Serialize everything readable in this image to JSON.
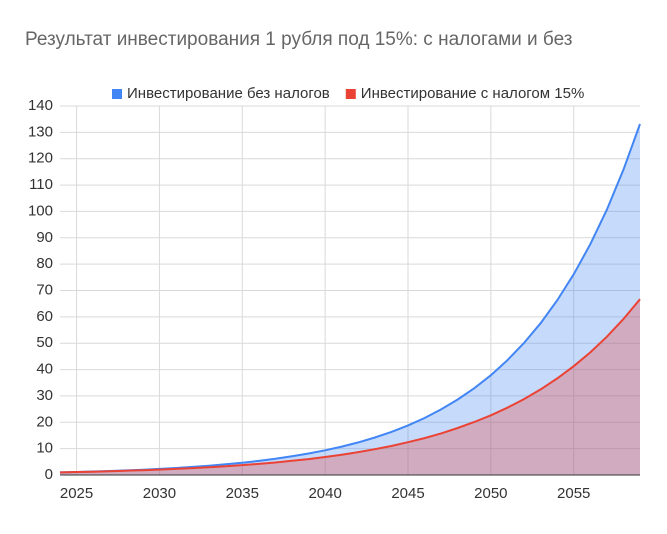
{
  "chart_data": {
    "type": "area",
    "title": "Результат инвестирования 1 рубля под 15%: с налогами и без",
    "x": [
      2024,
      2025,
      2026,
      2027,
      2028,
      2029,
      2030,
      2031,
      2032,
      2033,
      2034,
      2035,
      2036,
      2037,
      2038,
      2039,
      2040,
      2041,
      2042,
      2043,
      2044,
      2045,
      2046,
      2047,
      2048,
      2049,
      2050,
      2051,
      2052,
      2053,
      2054,
      2055,
      2056,
      2057,
      2058,
      2059
    ],
    "series": [
      {
        "name": "Инвестирование без налогов",
        "color": "#4285f4",
        "values": [
          1,
          1.15,
          1.32,
          1.52,
          1.75,
          2.01,
          2.31,
          2.66,
          3.06,
          3.52,
          4.05,
          4.65,
          5.35,
          6.15,
          7.08,
          8.14,
          9.36,
          10.76,
          12.38,
          14.23,
          16.37,
          18.82,
          21.64,
          24.89,
          28.63,
          32.92,
          37.86,
          43.54,
          50.07,
          57.58,
          66.21,
          76.14,
          87.57,
          100.7,
          115.8,
          133.18
        ]
      },
      {
        "name": "Инвестирование с налогом 15%",
        "color": "#ea4335",
        "values": [
          1,
          1.13,
          1.27,
          1.43,
          1.62,
          1.82,
          2.05,
          2.32,
          2.61,
          2.94,
          3.32,
          3.74,
          4.22,
          4.76,
          5.37,
          6.05,
          6.82,
          7.69,
          8.67,
          9.78,
          11.02,
          12.43,
          14.01,
          15.8,
          17.82,
          20.09,
          22.65,
          25.53,
          28.79,
          32.46,
          36.6,
          41.27,
          46.53,
          52.46,
          59.15,
          66.69
        ]
      }
    ],
    "xlim": [
      2024,
      2059
    ],
    "xticks": [
      2025,
      2030,
      2035,
      2040,
      2045,
      2050,
      2055
    ],
    "ylim": [
      0,
      140
    ],
    "yticks": [
      0,
      10,
      20,
      30,
      40,
      50,
      60,
      70,
      80,
      90,
      100,
      110,
      120,
      130,
      140
    ],
    "grid": true,
    "legend": "top"
  }
}
